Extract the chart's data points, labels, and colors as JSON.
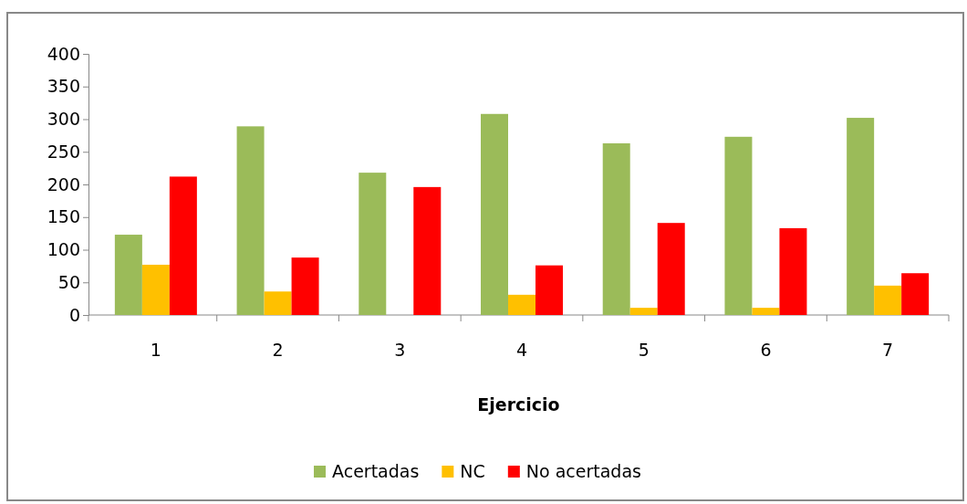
{
  "chart_data": {
    "type": "bar",
    "xlabel": "Ejercicio",
    "categories": [
      "1",
      "2",
      "3",
      "4",
      "5",
      "6",
      "7"
    ],
    "series": [
      {
        "name": "Acertadas",
        "color": "#9bbb59",
        "values": [
          123,
          289,
          218,
          308,
          263,
          273,
          302
        ]
      },
      {
        "name": "NC",
        "color": "#ffc000",
        "values": [
          77,
          36,
          0,
          31,
          11,
          11,
          45
        ]
      },
      {
        "name": "No acertadas",
        "color": "#ff0000",
        "values": [
          212,
          88,
          196,
          76,
          141,
          133,
          64
        ]
      }
    ],
    "ylim": [
      0,
      400
    ],
    "yticks": [
      0,
      50,
      100,
      150,
      200,
      250,
      300,
      350,
      400
    ],
    "grid": false,
    "legend": "bottom"
  }
}
